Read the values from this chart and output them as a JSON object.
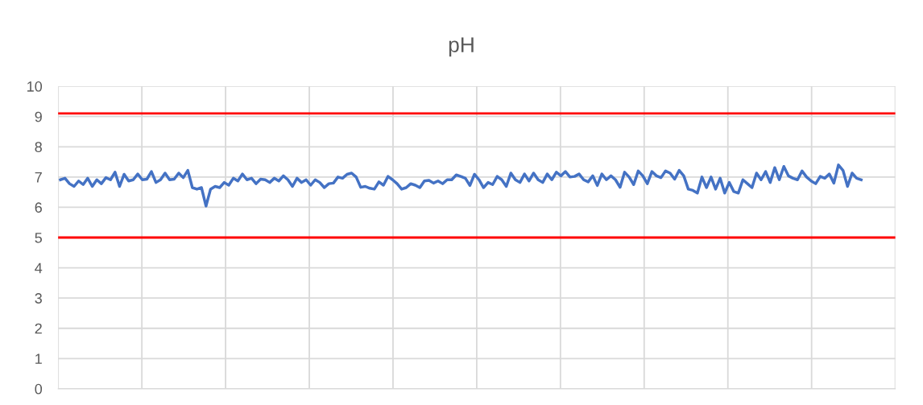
{
  "chart_data": {
    "type": "line",
    "title": "pH",
    "categories": [
      null,
      null,
      null,
      null,
      null,
      null,
      null,
      null,
      null,
      null,
      null,
      null,
      null,
      null,
      null,
      null,
      null,
      null,
      null,
      null,
      null,
      null,
      null,
      null,
      null,
      null,
      null,
      null,
      null,
      null,
      null,
      null,
      null,
      null,
      null,
      null,
      null,
      null,
      null,
      null,
      null,
      null,
      null,
      null,
      null,
      null,
      null,
      null,
      null,
      null,
      null,
      null,
      null,
      null,
      null,
      null,
      null,
      null,
      null,
      null,
      null,
      null,
      null,
      null,
      null,
      null,
      null,
      null,
      null,
      null,
      null,
      null,
      null,
      null,
      null,
      null,
      null,
      null,
      null,
      null,
      null,
      null,
      null,
      null,
      null,
      null,
      null,
      null,
      null,
      null,
      null,
      null,
      null,
      null,
      null,
      null,
      null,
      null,
      null,
      null,
      null,
      null,
      null,
      null,
      null,
      null,
      null,
      null,
      null,
      null,
      null,
      null,
      null,
      null,
      null,
      null,
      null,
      null,
      null,
      null,
      null,
      null,
      null,
      null,
      null,
      null,
      null,
      null,
      null,
      null,
      null,
      null,
      null,
      null,
      null,
      null,
      null,
      null,
      null,
      null,
      null,
      null,
      null,
      null,
      null,
      null,
      null,
      null,
      null,
      null,
      null,
      null,
      null,
      null,
      null,
      null,
      null,
      null,
      null,
      null,
      null,
      null,
      null,
      null,
      null,
      null,
      null,
      null,
      null,
      null,
      null,
      null,
      null,
      null,
      null,
      null,
      null,
      null,
      null,
      null,
      null,
      null,
      null,
      null
    ],
    "series": [
      {
        "color": "#4472c4",
        "values": [
          6.91,
          6.96,
          6.78,
          6.69,
          6.87,
          6.75,
          6.96,
          6.69,
          6.91,
          6.78,
          6.98,
          6.91,
          7.16,
          6.69,
          7.09,
          6.87,
          6.91,
          7.1,
          6.91,
          6.93,
          7.18,
          6.82,
          6.91,
          7.13,
          6.91,
          6.93,
          7.13,
          6.98,
          7.22,
          6.65,
          6.6,
          6.65,
          6.04,
          6.6,
          6.69,
          6.65,
          6.82,
          6.73,
          6.96,
          6.87,
          7.1,
          6.91,
          6.96,
          6.78,
          6.93,
          6.91,
          6.82,
          6.96,
          6.87,
          7.04,
          6.91,
          6.69,
          6.96,
          6.82,
          6.91,
          6.73,
          6.91,
          6.82,
          6.65,
          6.78,
          6.8,
          7.0,
          6.96,
          7.09,
          7.13,
          7.0,
          6.66,
          6.69,
          6.63,
          6.6,
          6.84,
          6.73,
          7.02,
          6.91,
          6.78,
          6.6,
          6.65,
          6.78,
          6.73,
          6.65,
          6.87,
          6.89,
          6.8,
          6.87,
          6.78,
          6.91,
          6.91,
          7.07,
          7.02,
          6.96,
          6.72,
          7.09,
          6.91,
          6.65,
          6.82,
          6.75,
          7.02,
          6.91,
          6.69,
          7.13,
          6.91,
          6.82,
          7.1,
          6.87,
          7.13,
          6.91,
          6.82,
          7.1,
          6.91,
          7.16,
          7.04,
          7.18,
          7.0,
          7.02,
          7.1,
          6.91,
          6.84,
          7.04,
          6.72,
          7.1,
          6.91,
          7.04,
          6.91,
          6.66,
          7.16,
          7.0,
          6.75,
          7.2,
          7.04,
          6.78,
          7.18,
          7.04,
          6.98,
          7.2,
          7.13,
          6.93,
          7.22,
          7.04,
          6.6,
          6.56,
          6.47,
          7.0,
          6.65,
          7.0,
          6.6,
          6.96,
          6.47,
          6.82,
          6.52,
          6.47,
          6.91,
          6.78,
          6.65,
          7.13,
          6.91,
          7.18,
          6.82,
          7.31,
          6.91,
          7.35,
          7.04,
          6.96,
          6.91,
          7.2,
          7.0,
          6.87,
          6.78,
          7.02,
          6.96,
          7.1,
          6.8,
          7.4,
          7.22,
          6.69,
          7.13,
          6.96,
          6.91,
          null,
          null,
          null,
          null,
          null,
          null,
          null
        ]
      }
    ],
    "ylim": [
      0,
      10
    ],
    "yticks": [
      0,
      1,
      2,
      3,
      4,
      5,
      6,
      7,
      8,
      9,
      10
    ],
    "grid": true,
    "tick_labels": "y",
    "line_style": "solid",
    "ref_lines": [
      {
        "axis": "y",
        "value": 9.1,
        "color": "#ff0000"
      },
      {
        "axis": "y",
        "value": 5,
        "color": "#ff0000"
      }
    ]
  }
}
